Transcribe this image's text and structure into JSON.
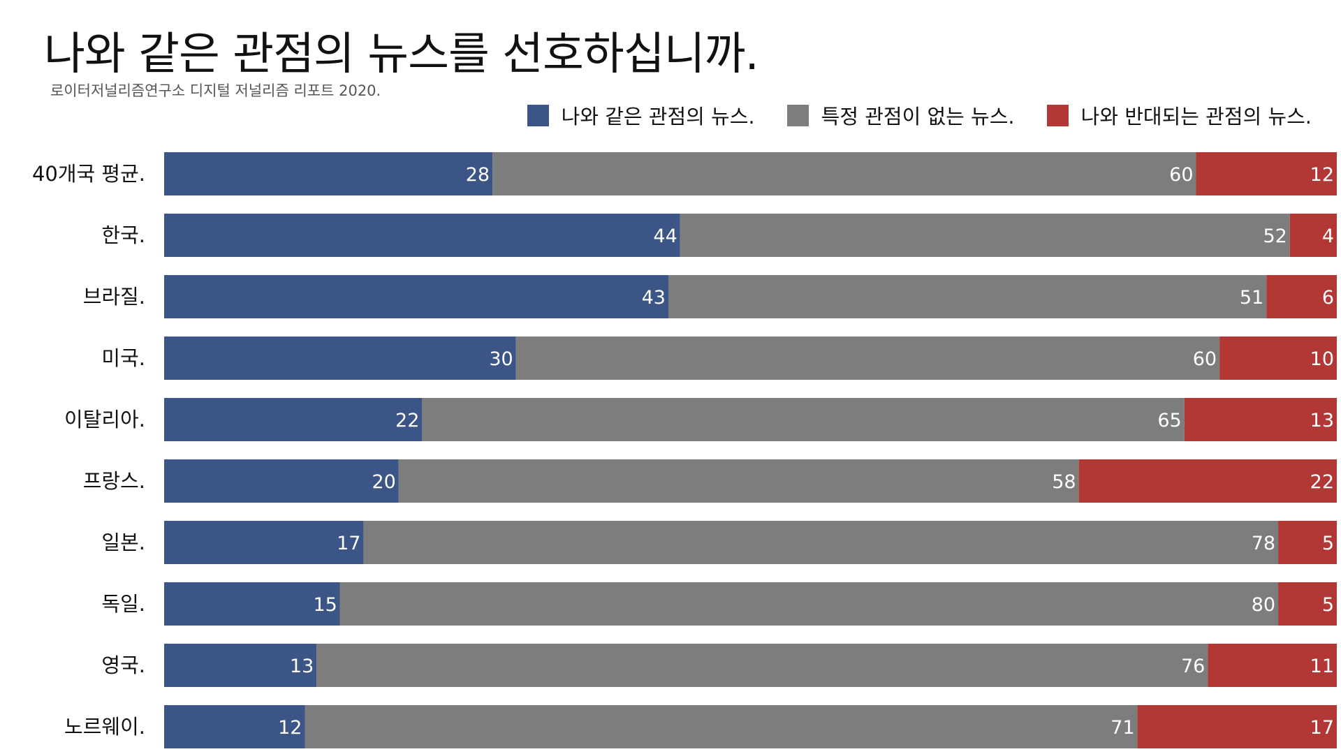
{
  "chart_data": {
    "type": "bar",
    "orientation": "horizontal",
    "stacked": true,
    "title": "나와 같은 관점의 뉴스를 선호하십니까.",
    "subtitle": "로이터저널리즘연구소 디지털 저널리즘 리포트 2020.",
    "legend_position": "top-right",
    "categories": [
      "40개국 평균.",
      "한국.",
      "브라질.",
      "미국.",
      "이탈리아.",
      "프랑스.",
      "일본.",
      "독일.",
      "영국.",
      "노르웨이."
    ],
    "series": [
      {
        "name": "나와 같은 관점의 뉴스.",
        "color": "#3a5586",
        "values": [
          28,
          44,
          43,
          30,
          22,
          20,
          17,
          15,
          13,
          12
        ]
      },
      {
        "name": "특정 관점이 없는 뉴스.",
        "color": "#7c7d7c",
        "values": [
          60,
          52,
          51,
          60,
          65,
          58,
          78,
          80,
          76,
          71
        ]
      },
      {
        "name": "나와 반대되는 관점의 뉴스.",
        "color": "#b23836",
        "values": [
          12,
          4,
          6,
          10,
          13,
          22,
          5,
          5,
          11,
          17
        ]
      }
    ],
    "xlim": [
      0,
      100
    ],
    "grid": false
  }
}
